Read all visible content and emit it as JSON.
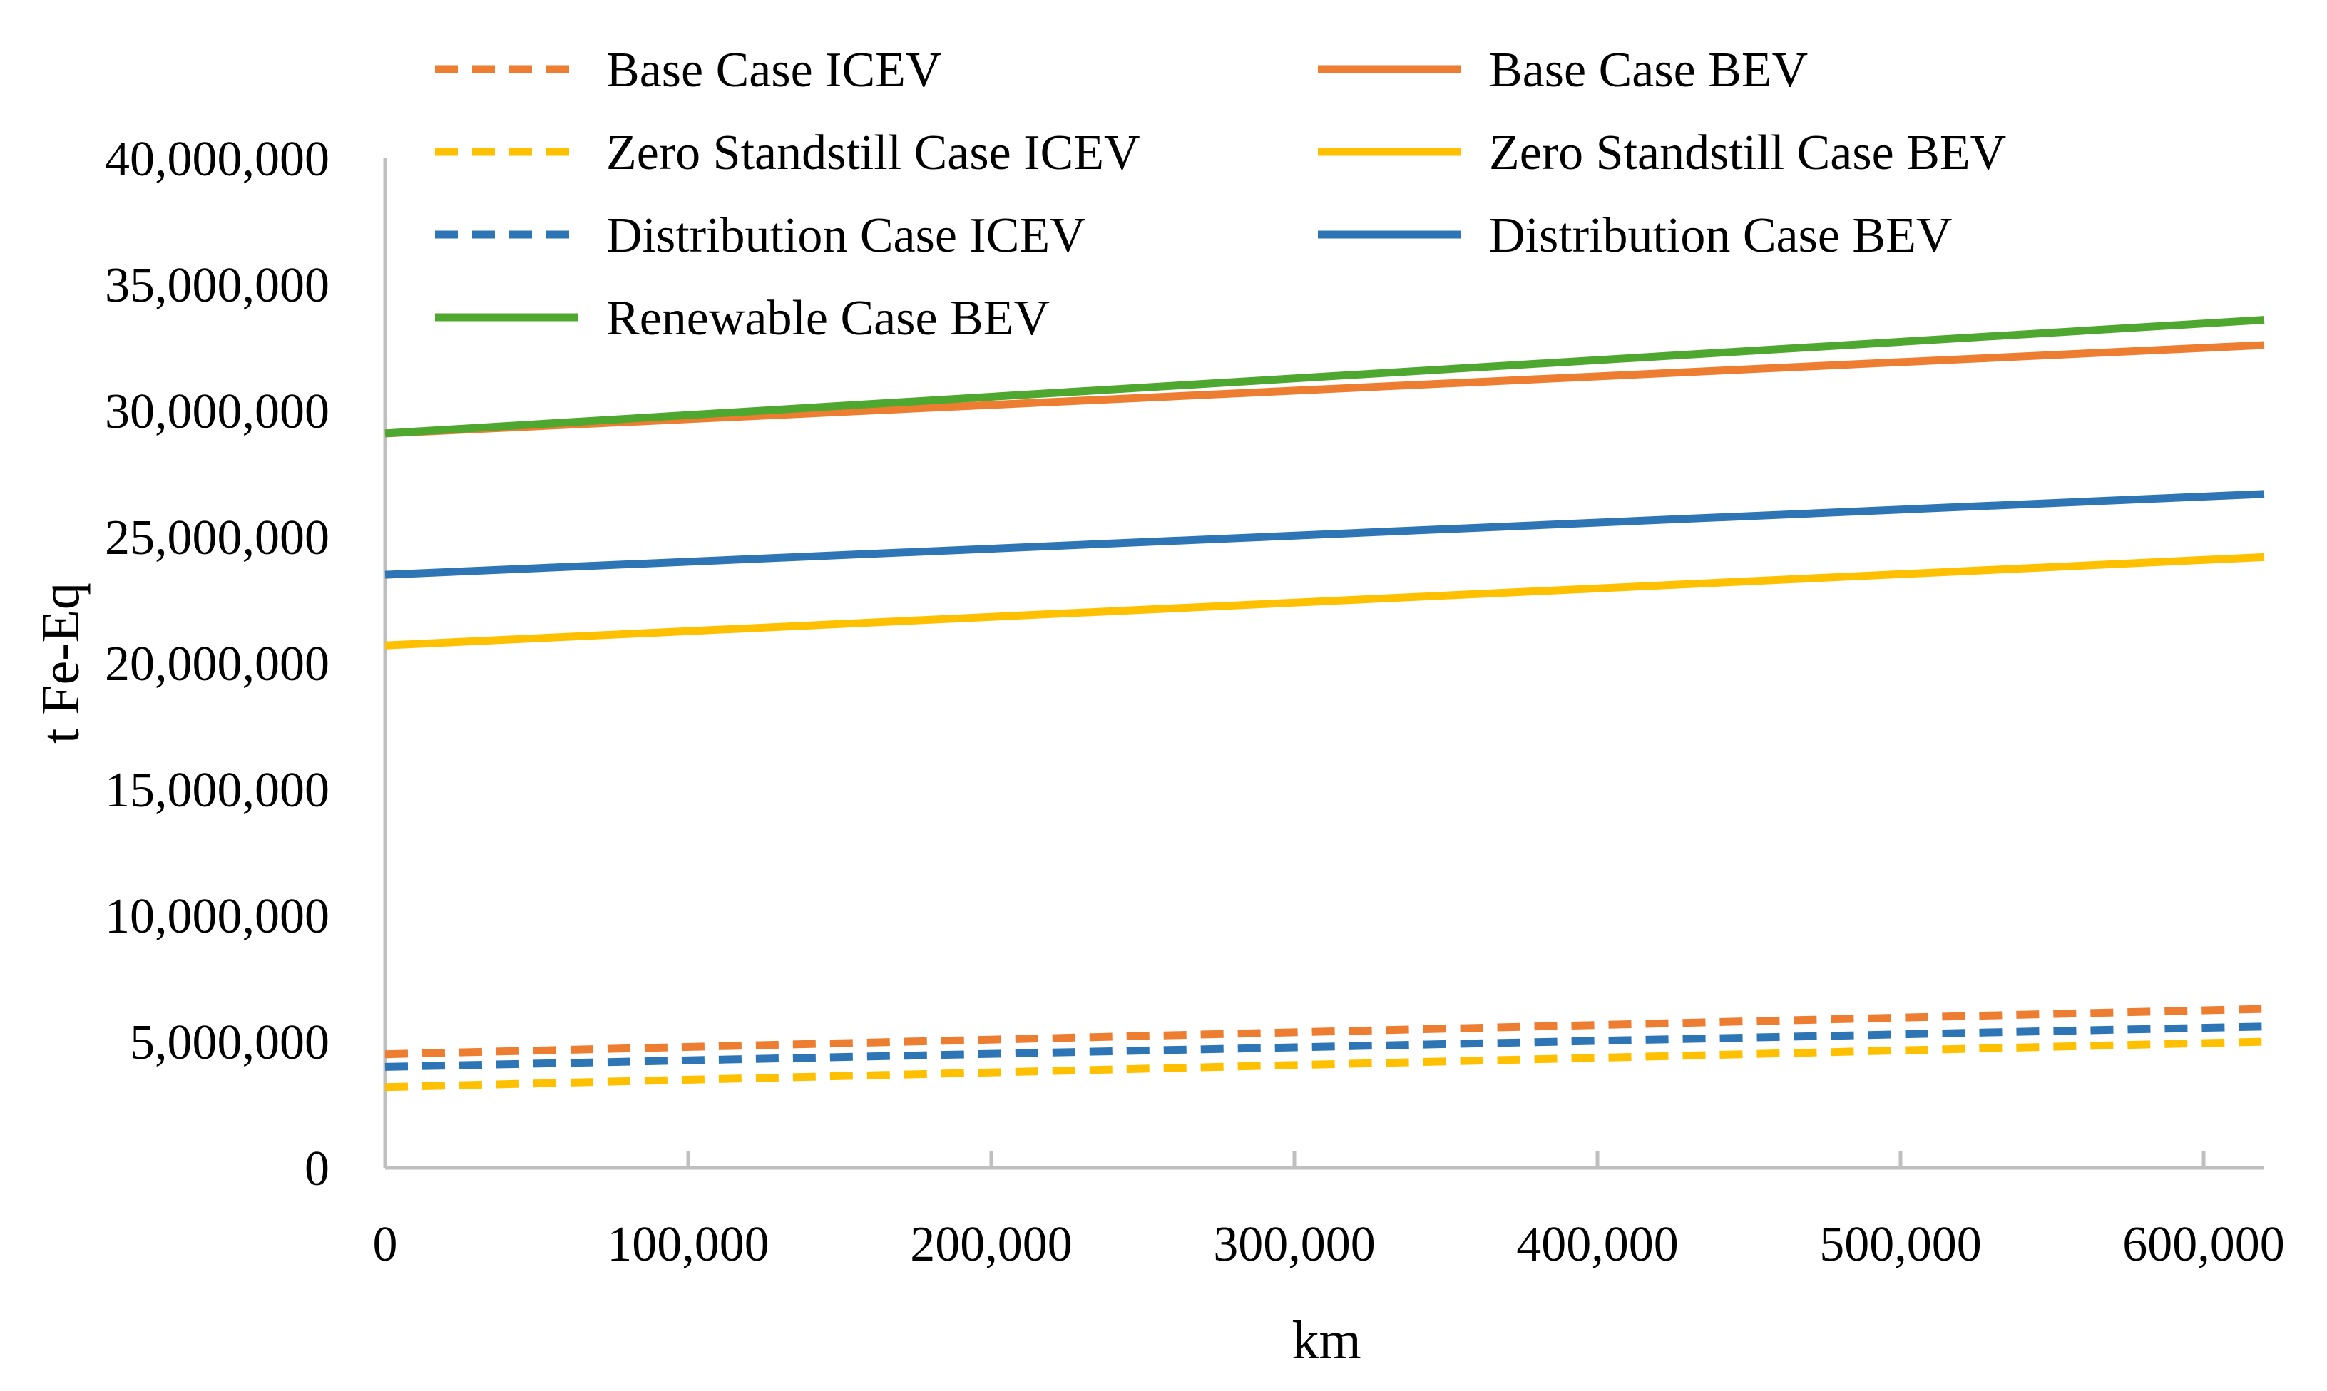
{
  "chart_data": {
    "type": "line",
    "title": "",
    "xlabel": "km",
    "ylabel": "t Fe-Eq",
    "xlim": [
      0,
      620000
    ],
    "ylim": [
      0,
      40000000
    ],
    "x_ticks": [
      0,
      100000,
      200000,
      300000,
      400000,
      500000,
      600000
    ],
    "x_tick_labels": [
      "0",
      "100,000",
      "200,000",
      "300,000",
      "400,000",
      "500,000",
      "600,000"
    ],
    "y_ticks": [
      0,
      5000000,
      10000000,
      15000000,
      20000000,
      25000000,
      30000000,
      35000000,
      40000000
    ],
    "y_tick_labels": [
      "0",
      "5,000,000",
      "10,000,000",
      "15,000,000",
      "20,000,000",
      "25,000,000",
      "30,000,000",
      "35,000,000",
      "40,000,000"
    ],
    "grid": false,
    "legend_position": "top",
    "series": [
      {
        "name": "Base Case ICEV",
        "color": "#ED7D31",
        "dash": "dashed",
        "x": [
          0,
          620000
        ],
        "values": [
          4500000,
          6300000
        ]
      },
      {
        "name": "Base Case BEV",
        "color": "#ED7D31",
        "dash": "solid",
        "x": [
          0,
          620000
        ],
        "values": [
          29100000,
          32600000
        ]
      },
      {
        "name": "Zero Standstill Case ICEV",
        "color": "#FFC000",
        "dash": "dashed",
        "x": [
          0,
          620000
        ],
        "values": [
          3200000,
          5000000
        ]
      },
      {
        "name": "Zero Standstill Case BEV",
        "color": "#FFC000",
        "dash": "solid",
        "x": [
          0,
          620000
        ],
        "values": [
          20700000,
          24200000
        ]
      },
      {
        "name": "Distribution Case ICEV",
        "color": "#2E75B6",
        "dash": "dashed",
        "x": [
          0,
          620000
        ],
        "values": [
          4000000,
          5600000
        ]
      },
      {
        "name": "Distribution Case BEV",
        "color": "#2E75B6",
        "dash": "solid",
        "x": [
          0,
          620000
        ],
        "values": [
          23500000,
          26700000
        ]
      },
      {
        "name": "Renewable Case BEV",
        "color": "#4EA72E",
        "dash": "solid",
        "x": [
          0,
          620000
        ],
        "values": [
          29100000,
          33600000
        ]
      }
    ]
  }
}
